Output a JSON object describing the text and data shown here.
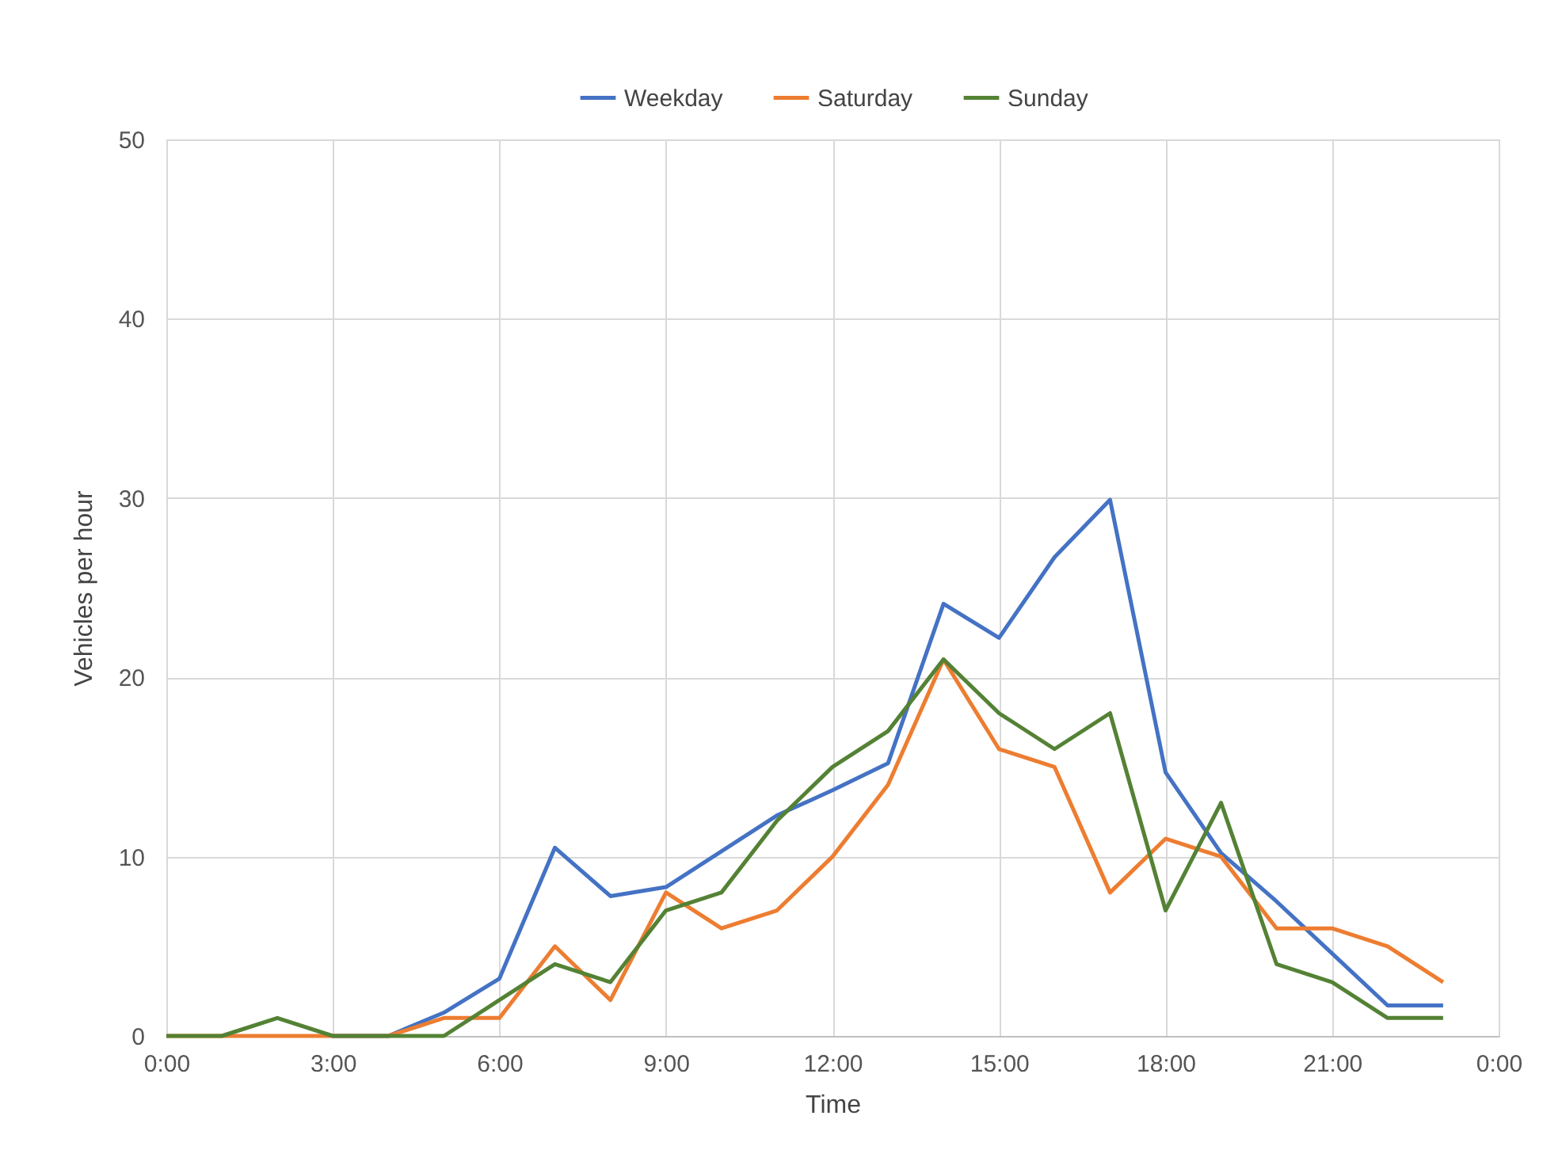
{
  "chart_data": {
    "type": "line",
    "xlabel": "Time",
    "ylabel": "Vehicles per hour",
    "x": [
      0,
      1,
      2,
      3,
      4,
      5,
      6,
      7,
      8,
      9,
      10,
      11,
      12,
      13,
      14,
      15,
      16,
      17,
      18,
      19,
      20,
      21,
      22,
      23
    ],
    "series": [
      {
        "name": "Weekday",
        "color": "#4472c4",
        "values": [
          null,
          null,
          null,
          0,
          0,
          1.3,
          3.2,
          10.5,
          7.8,
          8.3,
          10.3,
          12.3,
          13.7,
          15.2,
          24.1,
          22.2,
          26.7,
          29.9,
          14.7,
          10.2,
          7.5,
          4.6,
          1.7,
          1.7
        ]
      },
      {
        "name": "Saturday",
        "color": "#ed7d31",
        "values": [
          0,
          0,
          0,
          0,
          0,
          1,
          1,
          5,
          2,
          8,
          6,
          7,
          10,
          14,
          21,
          16,
          15,
          8,
          11,
          10,
          6,
          6,
          5,
          3
        ]
      },
      {
        "name": "Sunday",
        "color": "#548235",
        "values": [
          0,
          0,
          1,
          0,
          0,
          0,
          2,
          4,
          3,
          7,
          8,
          12,
          15,
          17,
          21,
          18,
          16,
          18,
          7,
          13,
          4,
          3,
          1,
          1
        ]
      }
    ],
    "xlim": [
      0,
      24
    ],
    "xticks": [
      {
        "value": 0,
        "label": "0:00"
      },
      {
        "value": 3,
        "label": "3:00"
      },
      {
        "value": 6,
        "label": "6:00"
      },
      {
        "value": 9,
        "label": "9:00"
      },
      {
        "value": 12,
        "label": "12:00"
      },
      {
        "value": 15,
        "label": "15:00"
      },
      {
        "value": 18,
        "label": "18:00"
      },
      {
        "value": 21,
        "label": "21:00"
      },
      {
        "value": 24,
        "label": "0:00"
      }
    ],
    "ylim": [
      0,
      50
    ],
    "yticks": [
      0,
      10,
      20,
      30,
      40,
      50
    ],
    "grid": true,
    "legend": "top",
    "line_style": "solid",
    "marker": "none"
  }
}
